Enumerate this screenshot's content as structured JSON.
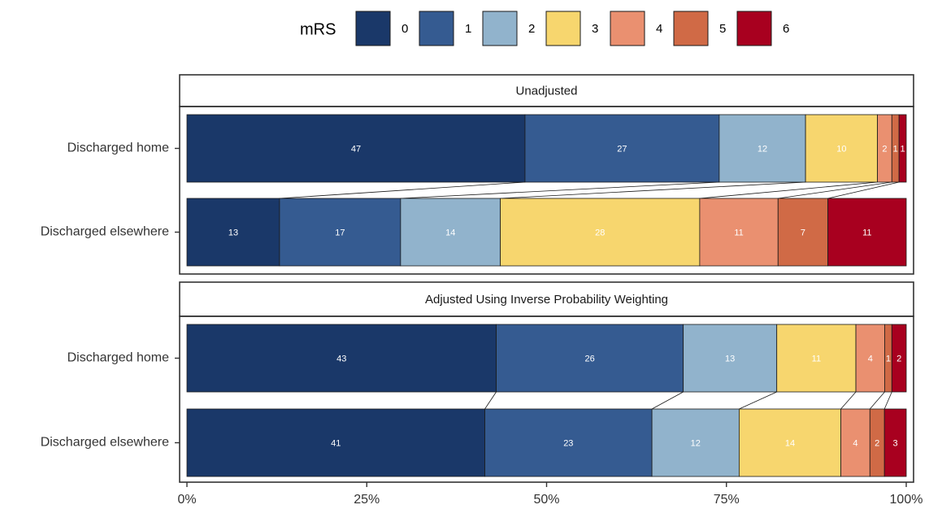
{
  "chart_data": {
    "type": "bar",
    "orientation": "horizontal-stacked-100",
    "legend": {
      "title": "mRS",
      "placement": "top",
      "entries": [
        "0",
        "1",
        "2",
        "3",
        "4",
        "5",
        "6"
      ]
    },
    "colors": [
      "#1a3869",
      "#355b91",
      "#91b3cc",
      "#f7d66e",
      "#ea9070",
      "#d06a46",
      "#a8001f"
    ],
    "categories": [
      "Discharged home",
      "Discharged elsewhere"
    ],
    "x_ticks": [
      "0%",
      "25%",
      "50%",
      "75%",
      "100%"
    ],
    "xlim": [
      0,
      100
    ],
    "panels": [
      {
        "title": "Unadjusted",
        "rows": [
          {
            "category": "Discharged home",
            "values": [
              47,
              27,
              12,
              10,
              2,
              1,
              1
            ]
          },
          {
            "category": "Discharged elsewhere",
            "values": [
              13,
              17,
              14,
              28,
              11,
              7,
              11
            ]
          }
        ]
      },
      {
        "title": "Adjusted Using Inverse Probability Weighting",
        "rows": [
          {
            "category": "Discharged home",
            "values": [
              43,
              26,
              13,
              11,
              4,
              1,
              2
            ]
          },
          {
            "category": "Discharged elsewhere",
            "values": [
              41,
              23,
              12,
              14,
              4,
              2,
              3
            ]
          }
        ]
      }
    ]
  }
}
